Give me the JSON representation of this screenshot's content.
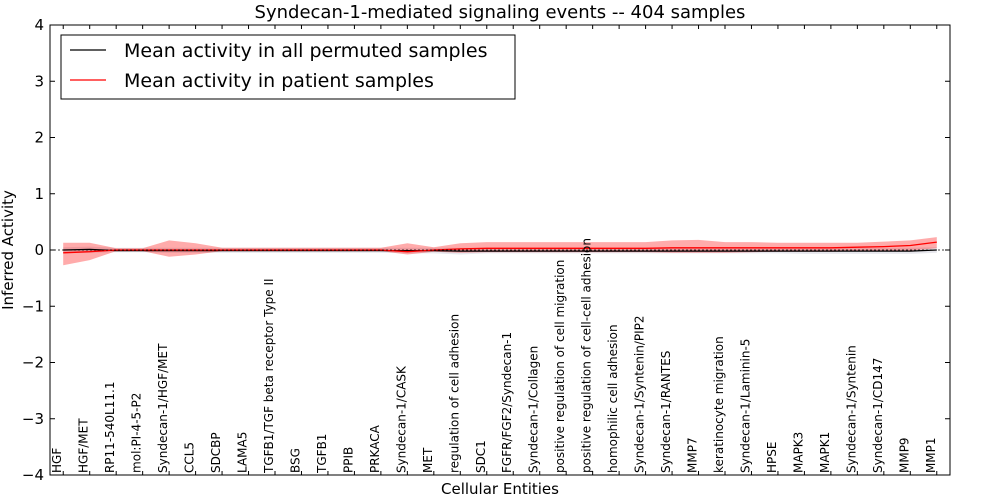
{
  "chart_data": {
    "type": "line",
    "title": "Syndecan-1-mediated signaling events -- 404 samples",
    "xlabel": "Cellular Entities",
    "ylabel": "Inferred Activity",
    "ylim": [
      -4,
      4
    ],
    "yticks": [
      -4,
      -3,
      -2,
      -1,
      0,
      1,
      2,
      3,
      4
    ],
    "ytick_labels": [
      "−4",
      "−3",
      "−2",
      "−1",
      "0",
      "1",
      "2",
      "3",
      "4"
    ],
    "legend_position": "top-left",
    "categories": [
      "HGF",
      "HGF/MET",
      "RP11-540L11.1",
      "mol:PI-4-5-P2",
      "Syndecan-1/HGF/MET",
      "CCL5",
      "SDCBP",
      "LAMA5",
      "TGFB1/TGF beta receptor Type II",
      "BSG",
      "TGFB1",
      "PPIB",
      "PRKACA",
      "Syndecan-1/CASK",
      "MET",
      "regulation of cell adhesion",
      "SDC1",
      "FGFR/FGF2/Syndecan-1",
      "Syndecan-1/Collagen",
      "positive regulation of cell migration",
      "positive regulation of cell-cell adhesion",
      "homophilic cell adhesion",
      "Syndecan-1/Syntenin/PIP2",
      "Syndecan-1/RANTES",
      "MMP7",
      "keratinocyte migration",
      "Syndecan-1/Laminin-5",
      "HPSE",
      "MAPK3",
      "MAPK1",
      "Syndecan-1/Syntenin",
      "Syndecan-1/CD147",
      "MMP9",
      "MMP1"
    ],
    "series": [
      {
        "name": "Mean activity in all permuted samples",
        "color": "#000000",
        "values": [
          0.0,
          0.01,
          -0.01,
          -0.01,
          -0.01,
          -0.01,
          -0.01,
          -0.01,
          -0.01,
          -0.01,
          -0.01,
          -0.01,
          -0.01,
          -0.01,
          -0.01,
          -0.02,
          -0.02,
          -0.02,
          -0.02,
          -0.02,
          -0.02,
          -0.02,
          -0.02,
          -0.02,
          -0.02,
          -0.02,
          -0.02,
          -0.02,
          -0.02,
          -0.02,
          -0.02,
          -0.02,
          -0.02,
          0.0
        ],
        "band_lower": [
          -0.05,
          -0.05,
          -0.04,
          -0.04,
          -0.05,
          -0.05,
          -0.05,
          -0.05,
          -0.05,
          -0.05,
          -0.05,
          -0.05,
          -0.05,
          -0.06,
          -0.06,
          -0.08,
          -0.06,
          -0.06,
          -0.06,
          -0.06,
          -0.06,
          -0.06,
          -0.06,
          -0.06,
          -0.06,
          -0.06,
          -0.06,
          -0.06,
          -0.07,
          -0.07,
          -0.07,
          -0.07,
          -0.07,
          -0.05
        ],
        "band_upper": [
          0.05,
          0.06,
          0.04,
          0.04,
          0.04,
          0.04,
          0.04,
          0.04,
          0.04,
          0.04,
          0.04,
          0.04,
          0.04,
          0.04,
          0.04,
          0.04,
          0.04,
          0.04,
          0.04,
          0.04,
          0.04,
          0.04,
          0.04,
          0.04,
          0.04,
          0.04,
          0.04,
          0.04,
          0.04,
          0.04,
          0.04,
          0.04,
          0.04,
          0.05
        ]
      },
      {
        "name": "Mean activity in patient samples",
        "color": "#ff0000",
        "values": [
          -0.05,
          -0.03,
          0.0,
          0.0,
          0.0,
          0.0,
          0.0,
          0.0,
          0.0,
          0.0,
          0.0,
          0.0,
          0.0,
          -0.03,
          0.0,
          0.02,
          0.03,
          0.03,
          0.03,
          0.03,
          0.03,
          0.03,
          0.03,
          0.04,
          0.04,
          0.04,
          0.04,
          0.04,
          0.04,
          0.04,
          0.05,
          0.06,
          0.08,
          0.14
        ],
        "band_lower": [
          -0.27,
          -0.18,
          -0.02,
          -0.02,
          -0.12,
          -0.08,
          -0.02,
          -0.02,
          -0.02,
          -0.02,
          -0.02,
          -0.02,
          -0.02,
          -0.08,
          -0.03,
          -0.05,
          -0.04,
          -0.04,
          -0.04,
          -0.04,
          -0.04,
          -0.04,
          -0.04,
          -0.05,
          -0.05,
          -0.05,
          -0.04,
          -0.03,
          -0.03,
          -0.03,
          -0.02,
          -0.02,
          -0.01,
          0.03
        ],
        "band_upper": [
          0.13,
          0.13,
          0.03,
          0.03,
          0.17,
          0.12,
          0.04,
          0.04,
          0.04,
          0.04,
          0.04,
          0.04,
          0.04,
          0.12,
          0.05,
          0.12,
          0.14,
          0.14,
          0.14,
          0.14,
          0.14,
          0.14,
          0.14,
          0.17,
          0.18,
          0.14,
          0.14,
          0.13,
          0.13,
          0.13,
          0.13,
          0.15,
          0.17,
          0.23
        ]
      }
    ]
  }
}
